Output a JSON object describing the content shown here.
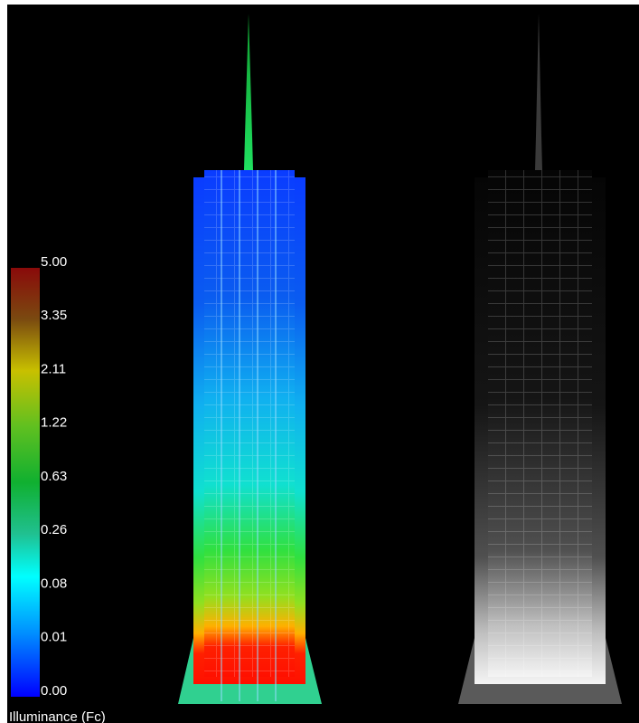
{
  "legend": {
    "title": "Illuminance (Fc)",
    "ticks": [
      "5.00",
      "3.35",
      "2.11",
      "1.22",
      "0.63",
      "0.26",
      "0.08",
      "0.01",
      "0.00"
    ]
  }
}
